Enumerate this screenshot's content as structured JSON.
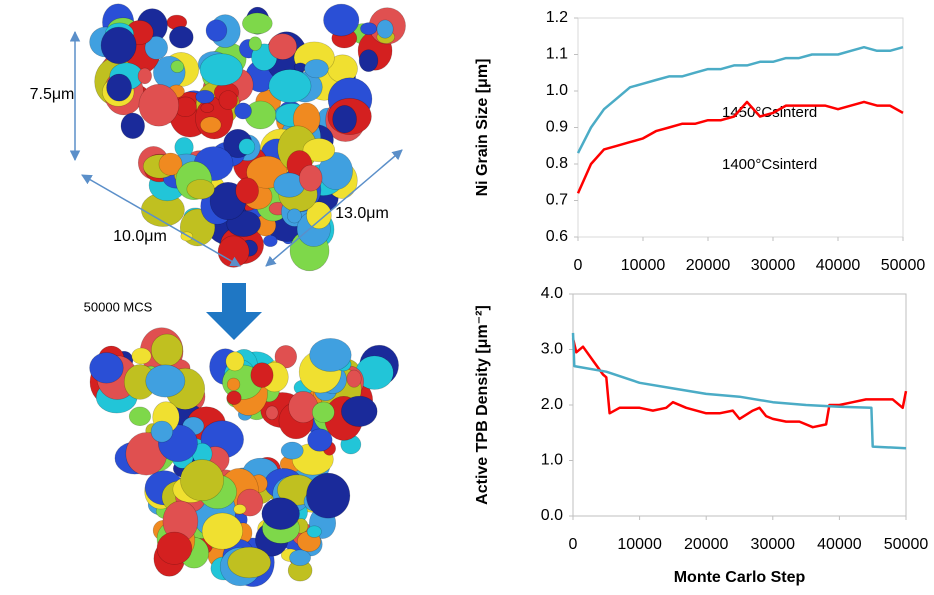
{
  "figure": {
    "height_label": "7.5μm",
    "width_label": "10.0μm",
    "depth_label": "13.0μm",
    "step_label": "50000 MCS"
  },
  "chart_data": [
    {
      "type": "line",
      "ylabel": "Ni Grain Size [μm]",
      "xlim": [
        0,
        50000
      ],
      "xticks": [
        0,
        10000,
        20000,
        30000,
        40000,
        50000
      ],
      "ylim": [
        0.6,
        1.2
      ],
      "yticks": [
        0.6,
        0.7,
        0.8,
        0.9,
        {
          "value": 1,
          "label": "1.0"
        },
        1.1,
        1.2
      ],
      "grid": false,
      "series": [
        {
          "name": "1450°Csinterd",
          "color": "#4bacc6",
          "x": [
            0,
            2000,
            4000,
            6000,
            8000,
            10000,
            12000,
            14000,
            16000,
            18000,
            20000,
            22000,
            24000,
            26000,
            28000,
            30000,
            32000,
            34000,
            36000,
            38000,
            40000,
            42000,
            44000,
            46000,
            48000,
            50000
          ],
          "values": [
            0.83,
            0.9,
            0.95,
            0.98,
            1.01,
            1.02,
            1.03,
            1.04,
            1.04,
            1.05,
            1.06,
            1.06,
            1.07,
            1.07,
            1.08,
            1.08,
            1.09,
            1.09,
            1.1,
            1.1,
            1.1,
            1.11,
            1.12,
            1.11,
            1.11,
            1.12
          ]
        },
        {
          "name": "1400°Csinterd",
          "color": "#ff0000",
          "x": [
            0,
            2000,
            4000,
            6000,
            8000,
            10000,
            12000,
            14000,
            16000,
            18000,
            20000,
            22000,
            24000,
            26000,
            28000,
            30000,
            32000,
            34000,
            36000,
            38000,
            40000,
            42000,
            44000,
            46000,
            48000,
            50000
          ],
          "values": [
            0.72,
            0.8,
            0.84,
            0.85,
            0.86,
            0.87,
            0.89,
            0.9,
            0.91,
            0.91,
            0.92,
            0.92,
            0.93,
            0.97,
            0.93,
            0.94,
            0.96,
            0.96,
            0.96,
            0.96,
            0.95,
            0.96,
            0.97,
            0.96,
            0.96,
            0.94
          ]
        }
      ]
    },
    {
      "type": "line",
      "ylabel": "Active TPB Density [μm⁻²]",
      "xlabel": "Monte Carlo Step",
      "xlim": [
        0,
        50000
      ],
      "xticks": [
        0,
        10000,
        20000,
        30000,
        40000,
        50000
      ],
      "ylim": [
        0,
        4
      ],
      "yticks": [
        {
          "value": 0,
          "label": "0.0"
        },
        {
          "value": 1,
          "label": "1.0"
        },
        {
          "value": 2,
          "label": "2.0"
        },
        {
          "value": 3,
          "label": "3.0"
        },
        {
          "value": 4,
          "label": "4.0"
        }
      ],
      "grid": false,
      "series": [
        {
          "color": "#ff0000",
          "x": [
            0,
            500,
            1500,
            3000,
            4500,
            5000,
            5500,
            7000,
            10000,
            12000,
            14000,
            15000,
            17000,
            20000,
            22000,
            24000,
            25000,
            27000,
            28000,
            29000,
            30000,
            32000,
            34000,
            36000,
            38000,
            38500,
            40000,
            42000,
            44000,
            46000,
            48000,
            49500,
            50000
          ],
          "values": [
            3.2,
            2.95,
            3.05,
            2.8,
            2.55,
            2.5,
            1.85,
            1.95,
            1.95,
            1.9,
            1.95,
            2.05,
            1.95,
            1.85,
            1.85,
            1.9,
            1.75,
            1.9,
            1.95,
            1.8,
            1.75,
            1.7,
            1.7,
            1.6,
            1.65,
            2,
            2,
            2.05,
            2.1,
            2.1,
            2.1,
            1.95,
            2.25
          ]
        },
        {
          "color": "#4bacc6",
          "x": [
            0,
            200,
            5000,
            10000,
            15000,
            20000,
            25000,
            30000,
            35000,
            40000,
            44800,
            45000,
            50000
          ],
          "values": [
            3.3,
            2.7,
            2.6,
            2.4,
            2.3,
            2.2,
            2.15,
            2.05,
            2,
            1.97,
            1.95,
            1.25,
            1.22
          ]
        }
      ]
    }
  ]
}
